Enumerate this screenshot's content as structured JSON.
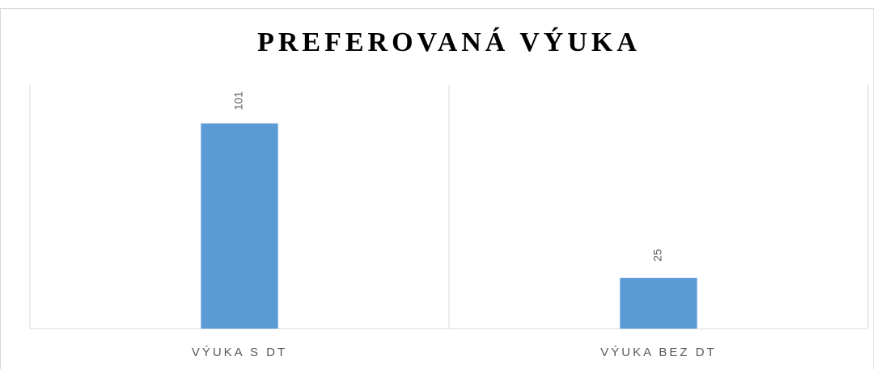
{
  "chart_data": {
    "type": "bar",
    "title": "PREFEROVANÁ VÝUKA",
    "categories": [
      "VÝUKA S DT",
      "VÝUKA BEZ DT"
    ],
    "values": [
      101,
      25
    ],
    "color": "#5b9bd5",
    "ylim": [
      0,
      120
    ]
  }
}
